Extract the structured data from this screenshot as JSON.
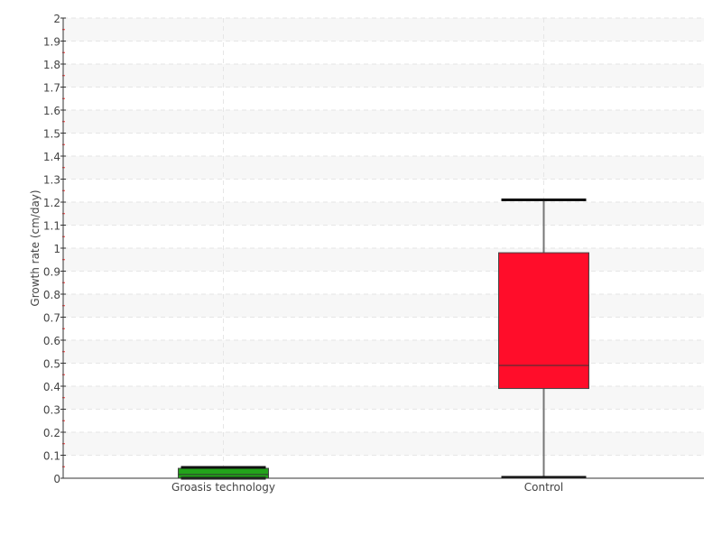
{
  "chart_data": {
    "type": "box",
    "title": "",
    "xlabel": "",
    "ylabel": "Growth rate (cm/day)",
    "ylim": [
      0,
      2
    ],
    "yticks": [
      "0",
      "0.1",
      "0.2",
      "0.3",
      "0.4",
      "0.5",
      "0.6",
      "0.7",
      "0.8",
      "0.9",
      "1",
      "1.1",
      "1.2",
      "1.3",
      "1.4",
      "1.5",
      "1.6",
      "1.7",
      "1.8",
      "1.9",
      "2"
    ],
    "grid": true,
    "categories": [
      "Groasis technology",
      "Control"
    ],
    "series": [
      {
        "category": "Groasis technology",
        "min": 0,
        "q1": 0,
        "median": 0.016,
        "q3": 0.043,
        "max": 0.047,
        "color": "#22a31a"
      },
      {
        "category": "Control",
        "min": 0.004,
        "q1": 0.39,
        "median": 0.49,
        "q3": 0.98,
        "max": 1.21,
        "color": "#ff0d2a"
      }
    ]
  }
}
